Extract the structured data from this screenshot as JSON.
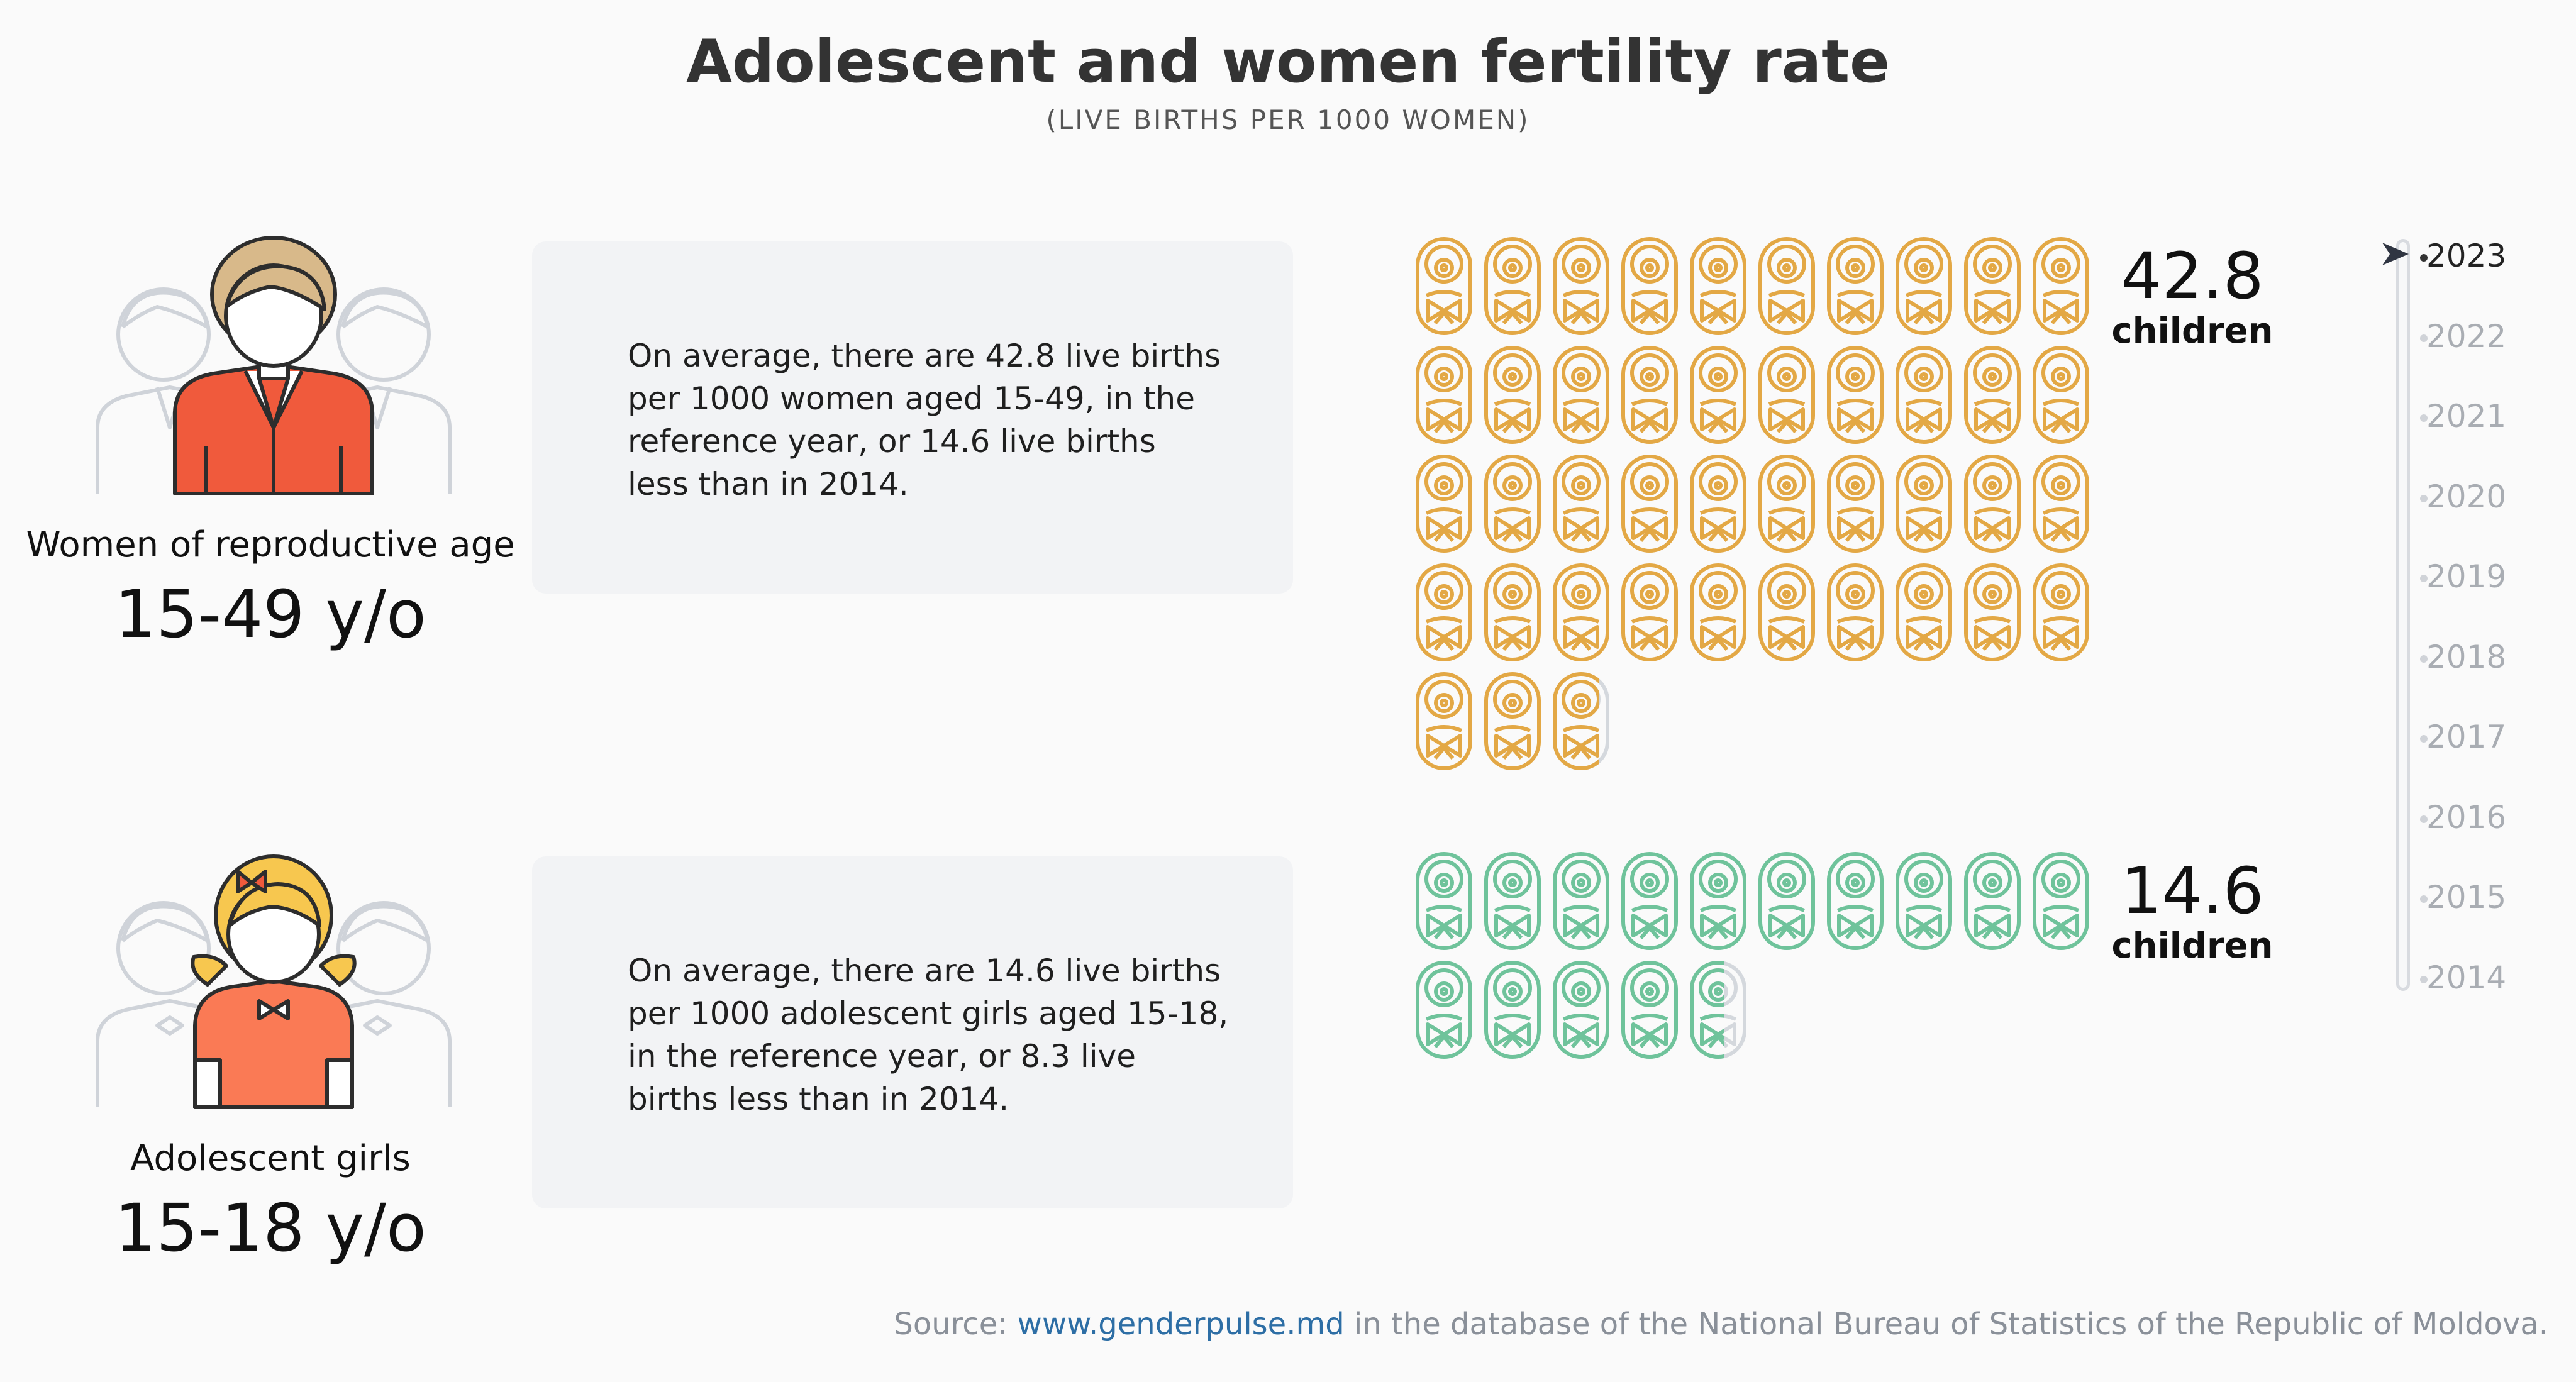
{
  "header": {
    "title": "Adolescent and women fertility rate",
    "subtitle": "(LIVE BIRTHS PER 1000 WOMEN)"
  },
  "groups": [
    {
      "label": "Women of reproductive age",
      "age": "15-49 y/o",
      "description": "On average, there are 42.8 live births per 1000 women aged 15-49, in the reference year, or 14.6 live births less than in 2014.",
      "description_lines": [
        "On average, there are 42.8 live births",
        "per 1000 women aged 15-49, in the",
        "reference year, or 14.6 live births",
        "less than in 2014."
      ],
      "value": "42.8",
      "unit": "children",
      "icon": "baby-icon",
      "color": "#e3a845"
    },
    {
      "label": "Adolescent girls",
      "age": "15-18 y/o",
      "description": "On average, there are 14.6 live births per 1000 adolescent girls aged 15-18, in the reference year, or 8.3 live births less than in 2014.",
      "description_lines": [
        "On average, there are 14.6 live births",
        "per 1000 adolescent girls aged 15-18,",
        "in the reference year, or 8.3 live",
        "births less than in 2014."
      ],
      "value": "14.6",
      "unit": "children",
      "icon": "baby-icon",
      "color": "#6fc39b"
    }
  ],
  "timeline": {
    "years": [
      "2023",
      "2022",
      "2021",
      "2020",
      "2019",
      "2018",
      "2017",
      "2016",
      "2015",
      "2014"
    ],
    "selected": "2023",
    "pointer_icon": "arrow-pointer-icon"
  },
  "source": {
    "prefix": "Source: ",
    "link_text": "www.genderpulse.md",
    "suffix": " in the database of the National Bureau of Statistics of the Republic of Moldova."
  },
  "chart_data": [
    {
      "type": "pictogram",
      "name": "Women of reproductive age",
      "value": 42.8,
      "icons_per_row": 10,
      "unit_per_icon": 1
    },
    {
      "type": "pictogram",
      "name": "Adolescent girls",
      "value": 14.6,
      "icons_per_row": 10,
      "unit_per_icon": 1
    }
  ],
  "colors": {
    "women_accent": "#e3a845",
    "girls_accent": "#6fc39b",
    "women_shirt": "#f05a3c",
    "girls_shirt": "#fa7a55",
    "card_bg": "#f2f3f5",
    "link": "#2d6ea5"
  }
}
